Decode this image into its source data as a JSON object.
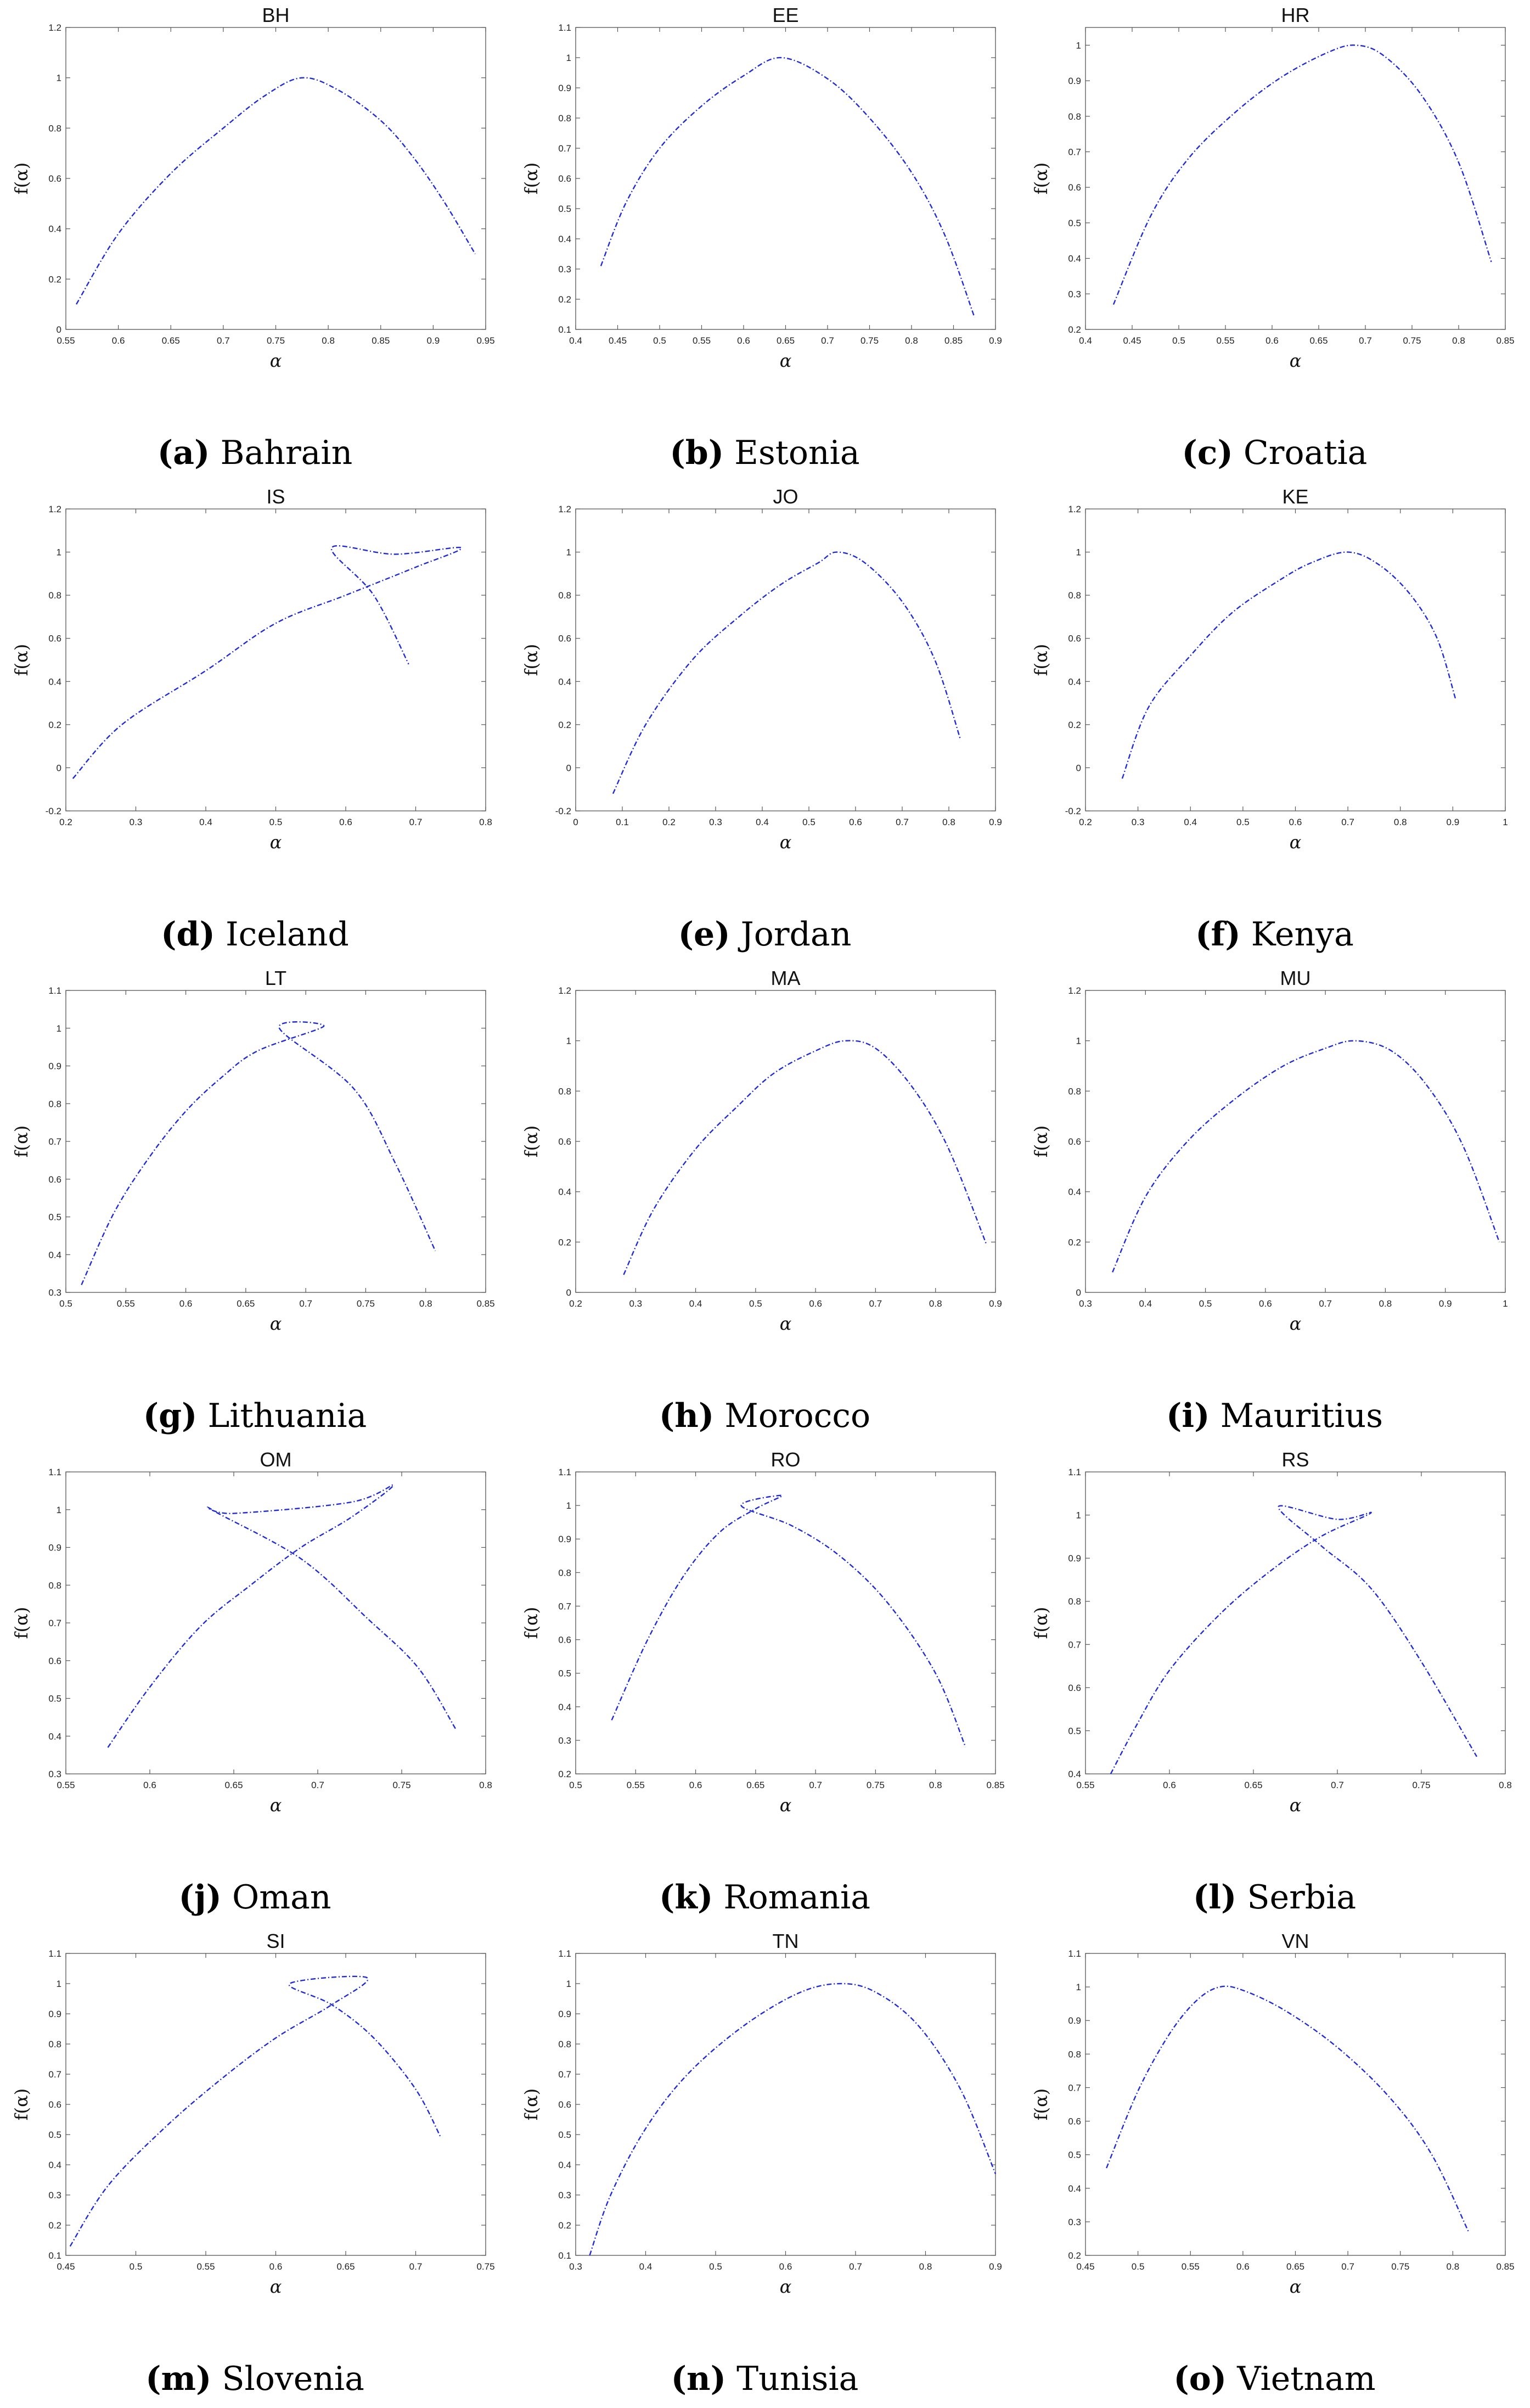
{
  "chart_data": [
    {
      "type": "line",
      "id": "a",
      "title": "BH",
      "caption": "Bahrain",
      "xlabel": "α",
      "ylabel": "f(α)",
      "xlim": [
        0.55,
        0.95
      ],
      "ylim": [
        0,
        1.2
      ],
      "xticks": [
        "0.55",
        "0.6",
        "0.65",
        "0.7",
        "0.75",
        "0.8",
        "0.85",
        "0.9",
        "0.95"
      ],
      "yticks": [
        "0",
        "0.2",
        "0.4",
        "0.6",
        "0.8",
        "1",
        "1.2"
      ],
      "x": [
        0.56,
        0.6,
        0.65,
        0.7,
        0.74,
        0.775,
        0.81,
        0.85,
        0.88,
        0.91,
        0.94
      ],
      "y": [
        0.1,
        0.38,
        0.62,
        0.8,
        0.93,
        1.0,
        0.95,
        0.83,
        0.69,
        0.51,
        0.3
      ]
    },
    {
      "type": "line",
      "id": "b",
      "title": "EE",
      "caption": "Estonia",
      "xlabel": "α",
      "ylabel": "f(α)",
      "xlim": [
        0.4,
        0.9
      ],
      "ylim": [
        0.1,
        1.1
      ],
      "xticks": [
        "0.4",
        "0.45",
        "0.5",
        "0.55",
        "0.6",
        "0.65",
        "0.7",
        "0.75",
        "0.8",
        "0.85",
        "0.9"
      ],
      "yticks": [
        "0.1",
        "0.2",
        "0.3",
        "0.4",
        "0.5",
        "0.6",
        "0.7",
        "0.8",
        "0.9",
        "1",
        "1.1"
      ],
      "x": [
        0.43,
        0.46,
        0.5,
        0.55,
        0.6,
        0.645,
        0.7,
        0.75,
        0.8,
        0.84,
        0.875
      ],
      "y": [
        0.31,
        0.52,
        0.7,
        0.84,
        0.94,
        1.0,
        0.93,
        0.8,
        0.62,
        0.41,
        0.14
      ]
    },
    {
      "type": "line",
      "id": "c",
      "title": "HR",
      "caption": "Croatia",
      "xlabel": "α",
      "ylabel": "f(α)",
      "xlim": [
        0.4,
        0.85
      ],
      "ylim": [
        0.2,
        1.05
      ],
      "xticks": [
        "0.4",
        "0.45",
        "0.5",
        "0.55",
        "0.6",
        "0.65",
        "0.7",
        "0.75",
        "0.8",
        "0.85"
      ],
      "yticks": [
        "0.2",
        "0.3",
        "0.4",
        "0.5",
        "0.6",
        "0.7",
        "0.8",
        "0.9",
        "1"
      ],
      "x": [
        0.43,
        0.47,
        0.51,
        0.56,
        0.61,
        0.66,
        0.69,
        0.72,
        0.76,
        0.8,
        0.835
      ],
      "y": [
        0.27,
        0.52,
        0.68,
        0.81,
        0.91,
        0.98,
        1.0,
        0.97,
        0.86,
        0.67,
        0.39
      ]
    },
    {
      "type": "line",
      "id": "d",
      "title": "IS",
      "caption": "Iceland",
      "xlabel": "α",
      "ylabel": "f(α)",
      "xlim": [
        0.2,
        0.8
      ],
      "ylim": [
        -0.2,
        1.2
      ],
      "xticks": [
        "0.2",
        "0.3",
        "0.4",
        "0.5",
        "0.6",
        "0.7",
        "0.8"
      ],
      "yticks": [
        "-0.2",
        "0",
        "0.2",
        "0.4",
        "0.6",
        "0.8",
        "1",
        "1.2"
      ],
      "x": [
        0.21,
        0.28,
        0.4,
        0.5,
        0.6,
        0.7,
        0.765,
        0.67,
        0.58,
        0.64,
        0.69
      ],
      "y": [
        -0.05,
        0.2,
        0.45,
        0.67,
        0.8,
        0.93,
        1.02,
        0.99,
        1.02,
        0.8,
        0.48
      ]
    },
    {
      "type": "line",
      "id": "e",
      "title": "JO",
      "caption": "Jordan",
      "xlabel": "α",
      "ylabel": "f(α)",
      "xlim": [
        0,
        0.9
      ],
      "ylim": [
        -0.2,
        1.2
      ],
      "xticks": [
        "0",
        "0.1",
        "0.2",
        "0.3",
        "0.4",
        "0.5",
        "0.6",
        "0.7",
        "0.8",
        "0.9"
      ],
      "yticks": [
        "-0.2",
        "0",
        "0.2",
        "0.4",
        "0.6",
        "0.8",
        "1",
        "1.2"
      ],
      "x": [
        0.08,
        0.15,
        0.25,
        0.35,
        0.44,
        0.52,
        0.56,
        0.62,
        0.7,
        0.77,
        0.825
      ],
      "y": [
        -0.12,
        0.2,
        0.5,
        0.7,
        0.85,
        0.95,
        1.0,
        0.95,
        0.77,
        0.5,
        0.13
      ]
    },
    {
      "type": "line",
      "id": "f",
      "title": "KE",
      "caption": "Kenya",
      "xlabel": "α",
      "ylabel": "f(α)",
      "xlim": [
        0.2,
        1
      ],
      "ylim": [
        -0.2,
        1.2
      ],
      "xticks": [
        "0.2",
        "0.3",
        "0.4",
        "0.5",
        "0.6",
        "0.7",
        "0.8",
        "0.9",
        "1"
      ],
      "yticks": [
        "-0.2",
        "0",
        "0.2",
        "0.4",
        "0.6",
        "0.8",
        "1",
        "1.2"
      ],
      "x": [
        0.27,
        0.32,
        0.4,
        0.48,
        0.57,
        0.63,
        0.7,
        0.76,
        0.82,
        0.87,
        0.905
      ],
      "y": [
        -0.05,
        0.28,
        0.52,
        0.72,
        0.87,
        0.95,
        1.0,
        0.94,
        0.8,
        0.6,
        0.32
      ]
    },
    {
      "type": "line",
      "id": "g",
      "title": "LT",
      "caption": "Lithuania",
      "xlabel": "α",
      "ylabel": "f(α)",
      "xlim": [
        0.5,
        0.85
      ],
      "ylim": [
        0.3,
        1.1
      ],
      "xticks": [
        "0.5",
        "0.55",
        "0.6",
        "0.65",
        "0.7",
        "0.75",
        "0.8",
        "0.85"
      ],
      "yticks": [
        "0.3",
        "0.4",
        "0.5",
        "0.6",
        "0.7",
        "0.8",
        "0.9",
        "1",
        "1.1"
      ],
      "x": [
        0.513,
        0.54,
        0.57,
        0.6,
        0.63,
        0.66,
        0.715,
        0.678,
        0.74,
        0.775,
        0.808
      ],
      "y": [
        0.32,
        0.51,
        0.66,
        0.78,
        0.87,
        0.94,
        1.005,
        1.0,
        0.84,
        0.64,
        0.41
      ]
    },
    {
      "type": "line",
      "id": "h",
      "title": "MA",
      "caption": "Morocco",
      "xlabel": "α",
      "ylabel": "f(α)",
      "xlim": [
        0.2,
        0.9
      ],
      "ylim": [
        0,
        1.2
      ],
      "xticks": [
        "0.2",
        "0.3",
        "0.4",
        "0.5",
        "0.6",
        "0.7",
        "0.8",
        "0.9"
      ],
      "yticks": [
        "0",
        "0.2",
        "0.4",
        "0.6",
        "0.8",
        "1",
        "1.2"
      ],
      "x": [
        0.28,
        0.33,
        0.4,
        0.47,
        0.53,
        0.6,
        0.65,
        0.7,
        0.76,
        0.82,
        0.885
      ],
      "y": [
        0.07,
        0.33,
        0.57,
        0.74,
        0.87,
        0.96,
        1.0,
        0.97,
        0.82,
        0.58,
        0.19
      ]
    },
    {
      "type": "line",
      "id": "i",
      "title": "MU",
      "caption": "Mauritius",
      "xlabel": "α",
      "ylabel": "f(α)",
      "xlim": [
        0.3,
        1
      ],
      "ylim": [
        0,
        1.2
      ],
      "xticks": [
        "0.3",
        "0.4",
        "0.5",
        "0.6",
        "0.7",
        "0.8",
        "0.9",
        "1"
      ],
      "yticks": [
        "0",
        "0.2",
        "0.4",
        "0.6",
        "0.8",
        "1",
        "1.2"
      ],
      "x": [
        0.345,
        0.4,
        0.47,
        0.55,
        0.63,
        0.7,
        0.75,
        0.81,
        0.87,
        0.93,
        0.99
      ],
      "y": [
        0.08,
        0.38,
        0.6,
        0.77,
        0.9,
        0.97,
        1.0,
        0.96,
        0.82,
        0.58,
        0.2
      ]
    },
    {
      "type": "line",
      "id": "j",
      "title": "OM",
      "caption": "Oman",
      "xlabel": "α",
      "ylabel": "f(α)",
      "xlim": [
        0.55,
        0.8
      ],
      "ylim": [
        0.3,
        1.1
      ],
      "xticks": [
        "0.55",
        "0.6",
        "0.65",
        "0.7",
        "0.75",
        "0.8"
      ],
      "yticks": [
        "0.3",
        "0.4",
        "0.5",
        "0.6",
        "0.7",
        "0.8",
        "0.9",
        "1",
        "1.1"
      ],
      "x": [
        0.575,
        0.6,
        0.63,
        0.66,
        0.69,
        0.72,
        0.745,
        0.72,
        0.65,
        0.637,
        0.69,
        0.73,
        0.76,
        0.782
      ],
      "y": [
        0.37,
        0.53,
        0.69,
        0.8,
        0.9,
        0.98,
        1.065,
        1.02,
        0.99,
        1.0,
        0.87,
        0.71,
        0.58,
        0.42
      ]
    },
    {
      "type": "line",
      "id": "k",
      "title": "RO",
      "caption": "Romania",
      "xlabel": "α",
      "ylabel": "f(α)",
      "xlim": [
        0.5,
        0.85
      ],
      "ylim": [
        0.2,
        1.1
      ],
      "xticks": [
        "0.5",
        "0.55",
        "0.6",
        "0.65",
        "0.7",
        "0.75",
        "0.8",
        "0.85"
      ],
      "yticks": [
        "0.2",
        "0.3",
        "0.4",
        "0.5",
        "0.6",
        "0.7",
        "0.8",
        "0.9",
        "1",
        "1.1"
      ],
      "x": [
        0.53,
        0.56,
        0.59,
        0.62,
        0.65,
        0.672,
        0.638,
        0.68,
        0.72,
        0.76,
        0.8,
        0.825
      ],
      "y": [
        0.36,
        0.6,
        0.79,
        0.92,
        0.99,
        1.03,
        1.0,
        0.94,
        0.85,
        0.71,
        0.5,
        0.28
      ]
    },
    {
      "type": "line",
      "id": "l",
      "title": "RS",
      "caption": "Serbia",
      "xlabel": "α",
      "ylabel": "f(α)",
      "xlim": [
        0.55,
        0.8
      ],
      "ylim": [
        0.4,
        1.1
      ],
      "xticks": [
        "0.55",
        "0.6",
        "0.65",
        "0.7",
        "0.75",
        "0.8"
      ],
      "yticks": [
        "0.4",
        "0.5",
        "0.6",
        "0.7",
        "0.8",
        "0.9",
        "1",
        "1.1"
      ],
      "x": [
        0.565,
        0.58,
        0.6,
        0.63,
        0.66,
        0.69,
        0.72,
        0.7,
        0.665,
        0.69,
        0.72,
        0.75,
        0.783
      ],
      "y": [
        0.4,
        0.51,
        0.64,
        0.77,
        0.87,
        0.95,
        1.005,
        0.99,
        1.02,
        0.93,
        0.83,
        0.66,
        0.44
      ]
    },
    {
      "type": "line",
      "id": "m",
      "title": "SI",
      "caption": "Slovenia",
      "xlabel": "α",
      "ylabel": "f(α)",
      "xlim": [
        0.45,
        0.75
      ],
      "ylim": [
        0.1,
        1.1
      ],
      "xticks": [
        "0.45",
        "0.5",
        "0.55",
        "0.6",
        "0.65",
        "0.7",
        "0.75"
      ],
      "yticks": [
        "0.1",
        "0.2",
        "0.3",
        "0.4",
        "0.5",
        "0.6",
        "0.7",
        "0.8",
        "0.9",
        "1",
        "1.1"
      ],
      "x": [
        0.453,
        0.48,
        0.52,
        0.56,
        0.6,
        0.64,
        0.665,
        0.61,
        0.64,
        0.67,
        0.7,
        0.718
      ],
      "y": [
        0.13,
        0.33,
        0.52,
        0.68,
        0.82,
        0.93,
        1.02,
        1.0,
        0.93,
        0.82,
        0.65,
        0.49
      ]
    },
    {
      "type": "line",
      "id": "n",
      "title": "TN",
      "caption": "Tunisia",
      "xlabel": "α",
      "ylabel": "f(α)",
      "xlim": [
        0.3,
        0.9
      ],
      "ylim": [
        0.1,
        1.1
      ],
      "xticks": [
        "0.3",
        "0.4",
        "0.5",
        "0.6",
        "0.7",
        "0.8",
        "0.9"
      ],
      "yticks": [
        "0.1",
        "0.2",
        "0.3",
        "0.4",
        "0.5",
        "0.6",
        "0.7",
        "0.8",
        "0.9",
        "1",
        "1.1"
      ],
      "x": [
        0.32,
        0.35,
        0.4,
        0.46,
        0.54,
        0.62,
        0.68,
        0.73,
        0.79,
        0.85,
        0.9
      ],
      "y": [
        0.1,
        0.3,
        0.52,
        0.7,
        0.86,
        0.97,
        1.0,
        0.97,
        0.86,
        0.65,
        0.37
      ]
    },
    {
      "type": "line",
      "id": "o",
      "title": "VN",
      "caption": "Vietnam",
      "xlabel": "α",
      "ylabel": "f(α)",
      "xlim": [
        0.45,
        0.85
      ],
      "ylim": [
        0.2,
        1.1
      ],
      "xticks": [
        "0.45",
        "0.5",
        "0.55",
        "0.6",
        "0.65",
        "0.7",
        "0.75",
        "0.8",
        "0.85"
      ],
      "yticks": [
        "0.2",
        "0.3",
        "0.4",
        "0.5",
        "0.6",
        "0.7",
        "0.8",
        "0.9",
        "1",
        "1.1"
      ],
      "x": [
        0.47,
        0.5,
        0.53,
        0.556,
        0.578,
        0.6,
        0.64,
        0.69,
        0.74,
        0.78,
        0.815
      ],
      "y": [
        0.46,
        0.69,
        0.86,
        0.96,
        1.0,
        0.99,
        0.93,
        0.82,
        0.67,
        0.5,
        0.27
      ]
    }
  ]
}
